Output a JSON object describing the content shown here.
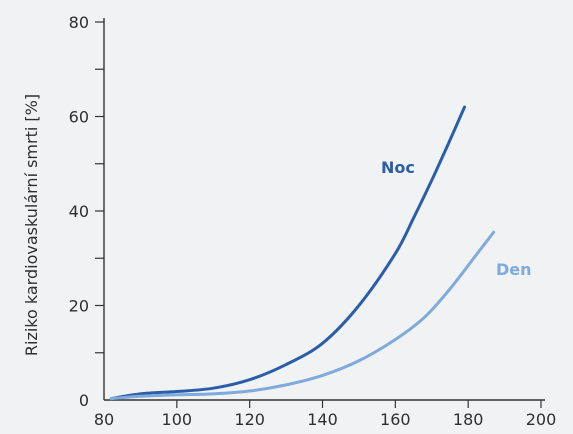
{
  "chart_data": {
    "type": "line",
    "title": "",
    "xlabel": "",
    "ylabel": "Riziko kardiovaskulární smrti [%]",
    "xlim": [
      80,
      200
    ],
    "ylim": [
      0,
      80
    ],
    "x_ticks": [
      80,
      100,
      120,
      140,
      160,
      180,
      200
    ],
    "y_ticks": [
      0,
      20,
      40,
      60,
      80
    ],
    "grid": false,
    "series": [
      {
        "name": "Noc",
        "color": "#2b5ea8",
        "x": [
          82,
          90,
          100,
          110,
          120,
          130,
          140,
          150,
          160,
          165,
          170,
          175,
          179
        ],
        "y": [
          0.3,
          1.3,
          1.8,
          2.5,
          4.3,
          7.5,
          12,
          20,
          31,
          38.5,
          46.5,
          55,
          62
        ]
      },
      {
        "name": "Den",
        "color": "#7eaadc",
        "x": [
          82,
          90,
          100,
          110,
          120,
          130,
          140,
          150,
          160,
          168,
          175,
          182,
          187
        ],
        "y": [
          0.3,
          0.8,
          1.1,
          1.3,
          1.9,
          3.2,
          5.2,
          8.3,
          12.8,
          17.5,
          23.5,
          30.5,
          35.5
        ]
      }
    ]
  }
}
